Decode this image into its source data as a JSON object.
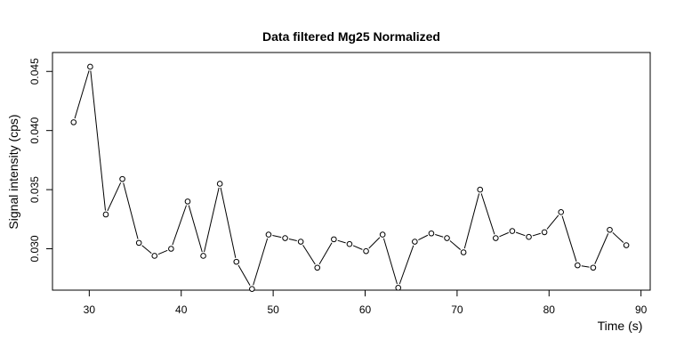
{
  "chart_data": {
    "type": "line",
    "title": "Data filtered Mg25 Normalized",
    "xlabel": "Time (s)",
    "ylabel": "Signal intensity (cps)",
    "xlim": [
      26,
      91
    ],
    "ylim": [
      0.0265,
      0.0466
    ],
    "xticks": [
      30,
      40,
      50,
      60,
      70,
      80,
      90
    ],
    "yticks": [
      0.03,
      0.035,
      0.04,
      0.045
    ],
    "xtick_labels": [
      "30",
      "40",
      "50",
      "60",
      "70",
      "80",
      "90"
    ],
    "ytick_labels": [
      "0.030",
      "0.035",
      "0.040",
      "0.045"
    ],
    "grid": false,
    "x": [
      28.3,
      30.1,
      31.8,
      33.6,
      35.4,
      37.1,
      38.9,
      40.7,
      42.4,
      44.2,
      46.0,
      47.7,
      49.5,
      51.3,
      53.0,
      54.8,
      56.6,
      58.3,
      60.1,
      61.9,
      63.6,
      65.4,
      67.2,
      68.9,
      70.7,
      72.5,
      74.2,
      76.0,
      77.8,
      79.5,
      81.3,
      83.1,
      84.8,
      86.6,
      88.4
    ],
    "y": [
      0.0407,
      0.0454,
      0.0329,
      0.0359,
      0.0305,
      0.0294,
      0.03,
      0.034,
      0.0294,
      0.0355,
      0.0289,
      0.0266,
      0.0312,
      0.0309,
      0.0306,
      0.0284,
      0.0308,
      0.0304,
      0.0298,
      0.0312,
      0.0267,
      0.0306,
      0.0313,
      0.0309,
      0.0297,
      0.035,
      0.0309,
      0.0315,
      0.031,
      0.0314,
      0.0331,
      0.0286,
      0.0284,
      0.0316,
      0.0303
    ]
  }
}
